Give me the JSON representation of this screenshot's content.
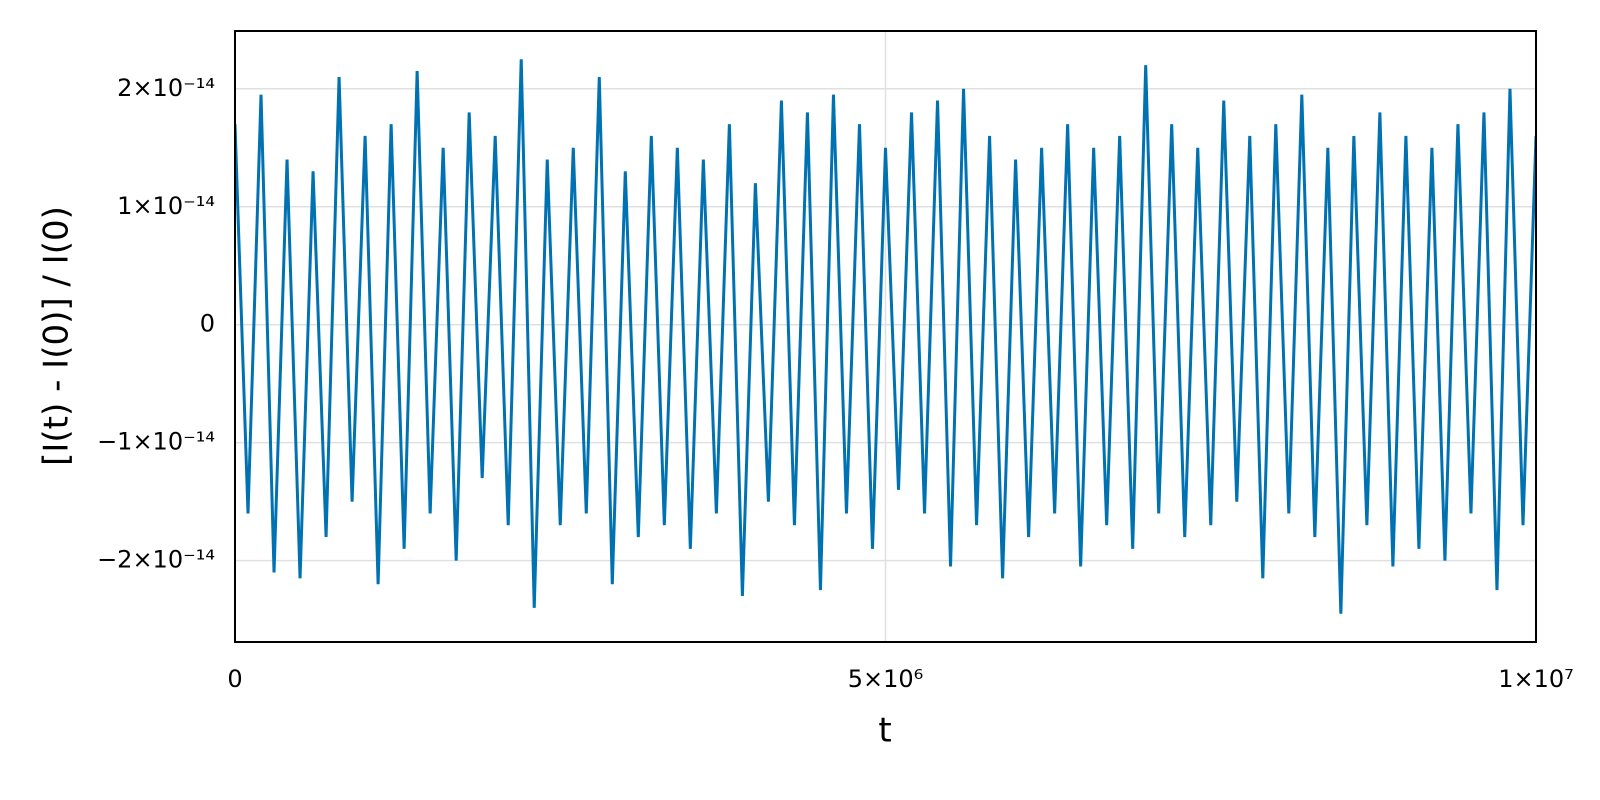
{
  "chart_data": {
    "type": "line",
    "x_label": "t",
    "y_label": "[I(t) - I(0)] / I(0)",
    "color": "#0072b2",
    "grid": true,
    "xlim": [
      0,
      10000000
    ],
    "ylim": [
      -2.69e-14,
      2.49e-14
    ],
    "xticks": [
      0,
      {
        "value": 5000000,
        "label": "5×10⁶"
      },
      {
        "value": 10000000,
        "label": "1×10⁷"
      }
    ],
    "yticks": [
      {
        "value": -2e-14,
        "label": "−2×10⁻¹⁴"
      },
      {
        "value": -1e-14,
        "label": "−1×10⁻¹⁴"
      },
      0,
      {
        "value": 1e-14,
        "label": "1×10⁻¹⁴"
      },
      {
        "value": 2e-14,
        "label": "2×10⁻¹⁴"
      }
    ],
    "x": [
      0,
      100000,
      200000,
      300000,
      400000,
      500000,
      600000,
      700000,
      800000,
      900000,
      1000000,
      1100000,
      1200000,
      1300000,
      1400000,
      1500000,
      1600000,
      1700000,
      1800000,
      1900000,
      2000000,
      2100000,
      2200000,
      2300000,
      2400000,
      2500000,
      2600000,
      2700000,
      2800000,
      2900000,
      3000000,
      3100000,
      3200000,
      3300000,
      3400000,
      3500000,
      3600000,
      3700000,
      3800000,
      3900000,
      4000000,
      4100000,
      4200000,
      4300000,
      4400000,
      4500000,
      4600000,
      4700000,
      4800000,
      4900000,
      5000000,
      5100000,
      5200000,
      5300000,
      5400000,
      5500000,
      5600000,
      5700000,
      5800000,
      5900000,
      6000000,
      6100000,
      6200000,
      6300000,
      6400000,
      6500000,
      6600000,
      6700000,
      6800000,
      6900000,
      7000000,
      7100000,
      7200000,
      7300000,
      7400000,
      7500000,
      7600000,
      7700000,
      7800000,
      7900000,
      8000000,
      8100000,
      8200000,
      8300000,
      8400000,
      8500000,
      8600000,
      8700000,
      8800000,
      8900000,
      9000000,
      9100000,
      9200000,
      9300000,
      9400000,
      9500000,
      9600000,
      9700000,
      9800000,
      9900000,
      10000000
    ],
    "values": [
      1.7e-14,
      -1.6e-14,
      1.95e-14,
      -2.1e-14,
      1.4e-14,
      -2.15e-14,
      1.3e-14,
      -1.8e-14,
      2.1e-14,
      -1.5e-14,
      1.6e-14,
      -2.2e-14,
      1.7e-14,
      -1.9e-14,
      2.15e-14,
      -1.6e-14,
      1.5e-14,
      -2e-14,
      1.8e-14,
      -1.3e-14,
      1.6e-14,
      -1.7e-14,
      2.25e-14,
      -2.4e-14,
      1.4e-14,
      -1.7e-14,
      1.5e-14,
      -1.6e-14,
      2.1e-14,
      -2.2e-14,
      1.3e-14,
      -1.8e-14,
      1.6e-14,
      -1.7e-14,
      1.5e-14,
      -1.9e-14,
      1.4e-14,
      -1.6e-14,
      1.7e-14,
      -2.3e-14,
      1.2e-14,
      -1.5e-14,
      1.9e-14,
      -1.7e-14,
      1.8e-14,
      -2.25e-14,
      1.95e-14,
      -1.6e-14,
      1.7e-14,
      -1.9e-14,
      1.5e-14,
      -1.4e-14,
      1.8e-14,
      -1.6e-14,
      1.9e-14,
      -2.05e-14,
      2e-14,
      -1.7e-14,
      1.6e-14,
      -2.15e-14,
      1.4e-14,
      -1.8e-14,
      1.5e-14,
      -1.6e-14,
      1.7e-14,
      -2.05e-14,
      1.5e-14,
      -1.7e-14,
      1.6e-14,
      -1.9e-14,
      2.2e-14,
      -1.6e-14,
      1.7e-14,
      -1.8e-14,
      1.5e-14,
      -1.7e-14,
      1.9e-14,
      -1.5e-14,
      1.6e-14,
      -2.15e-14,
      1.7e-14,
      -1.6e-14,
      1.95e-14,
      -1.8e-14,
      1.5e-14,
      -2.45e-14,
      1.6e-14,
      -1.7e-14,
      1.8e-14,
      -2.05e-14,
      1.6e-14,
      -1.9e-14,
      1.5e-14,
      -2e-14,
      1.7e-14,
      -1.6e-14,
      1.8e-14,
      -2.25e-14,
      2e-14,
      -1.7e-14,
      1.6e-14
    ]
  }
}
